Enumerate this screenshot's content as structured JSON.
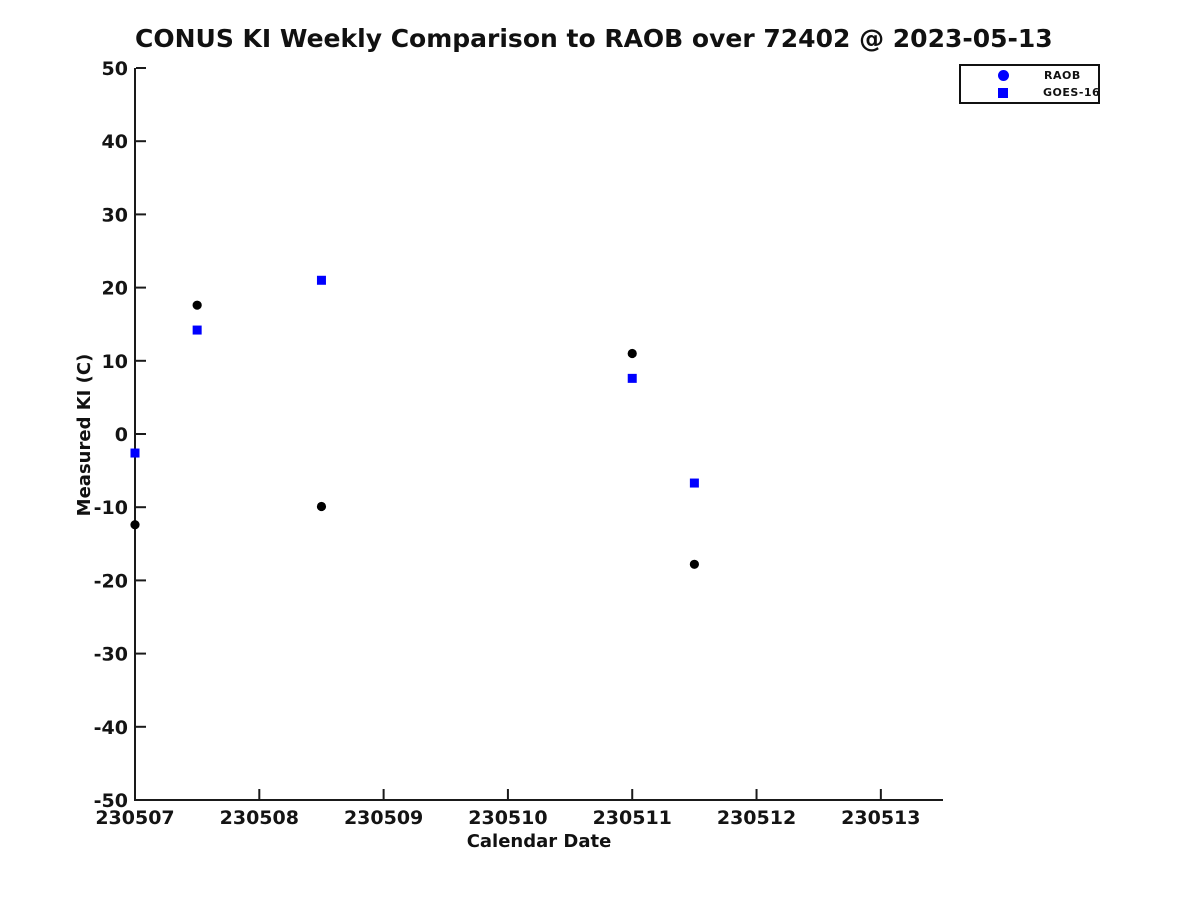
{
  "chart_data": {
    "type": "scatter",
    "title": "CONUS KI Weekly Comparison to RAOB over 72402 @ 2023-05-13",
    "xlabel": "Calendar Date",
    "ylabel": "Measured KI (C)",
    "xlim": [
      230507,
      230513.5
    ],
    "ylim": [
      -50,
      50
    ],
    "x_ticks": [
      230507,
      230508,
      230509,
      230510,
      230511,
      230512,
      230513
    ],
    "y_ticks": [
      50,
      40,
      30,
      20,
      10,
      0,
      -10,
      -20,
      -30,
      -40,
      -50
    ],
    "grid": false,
    "legend_position": "top-right",
    "axis_color": "#1a1a1a",
    "series": [
      {
        "name": "RAOB",
        "marker": "circle",
        "color": "#000000",
        "legend_color": "#0000ff",
        "points": [
          {
            "x": 230507.0,
            "y": -12.4
          },
          {
            "x": 230507.5,
            "y": 17.6
          },
          {
            "x": 230508.5,
            "y": -9.9
          },
          {
            "x": 230511.0,
            "y": 11.0
          },
          {
            "x": 230511.5,
            "y": -17.8
          }
        ]
      },
      {
        "name": "GOES-16",
        "marker": "square",
        "color": "#0000ff",
        "legend_color": "#0000ff",
        "points": [
          {
            "x": 230507.0,
            "y": -2.6
          },
          {
            "x": 230507.5,
            "y": 14.2
          },
          {
            "x": 230508.5,
            "y": 21.0
          },
          {
            "x": 230511.0,
            "y": 7.6
          },
          {
            "x": 230511.5,
            "y": -6.7
          }
        ]
      }
    ]
  }
}
